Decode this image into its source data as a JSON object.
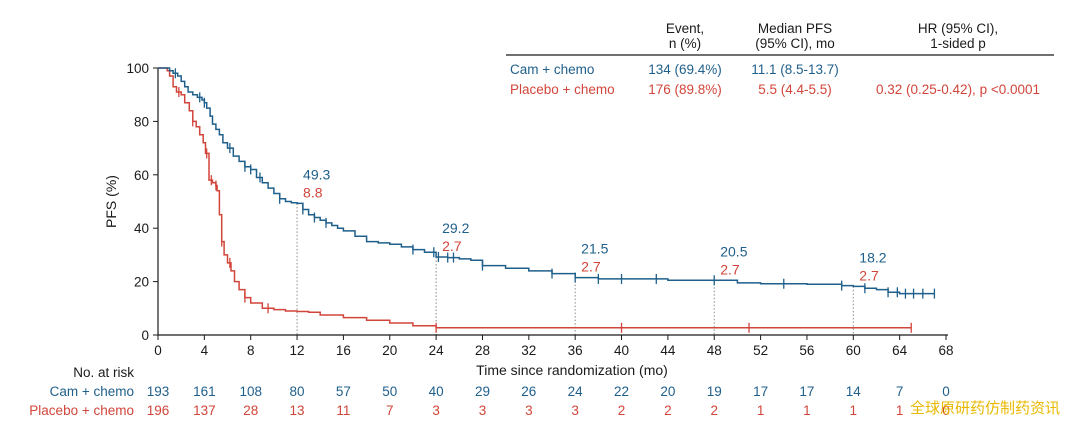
{
  "chart_data": {
    "type": "line",
    "ylabel": "PFS (%)",
    "xlabel": "Time since randomization (mo)",
    "xlim": [
      0,
      68
    ],
    "ylim": [
      0,
      100
    ],
    "x_ticks": [
      "0",
      "4",
      "8",
      "12",
      "16",
      "20",
      "24",
      "28",
      "32",
      "36",
      "40",
      "44",
      "48",
      "52",
      "56",
      "60",
      "64",
      "68"
    ],
    "y_ticks": [
      "0",
      "20",
      "40",
      "60",
      "80",
      "100"
    ],
    "colors": {
      "cam": "#1f5f8b",
      "placebo": "#d2453a"
    },
    "table": {
      "headers": [
        {
          "l1": "",
          "l2": ""
        },
        {
          "l1": "Event,",
          "l2": "n (%)"
        },
        {
          "l1": "Median PFS",
          "l2": "(95% CI), mo"
        },
        {
          "l1": "HR (95% CI),",
          "l2": "1-sided p"
        }
      ],
      "rows": [
        {
          "name": "Cam + chemo",
          "event": "134 (69.4%)",
          "median": "11.1 (8.5-13.7)",
          "hr": ""
        },
        {
          "name": "Placebo + chemo",
          "event": "176 (89.8%)",
          "median": "5.5 (4.4-5.5)",
          "hr": "0.32 (0.25-0.42), p <0.0001"
        }
      ]
    },
    "landmarks": [
      {
        "x": 12,
        "cam": "49.3",
        "placebo": "8.8"
      },
      {
        "x": 24,
        "cam": "29.2",
        "placebo": "2.7"
      },
      {
        "x": 36,
        "cam": "21.5",
        "placebo": "2.7"
      },
      {
        "x": 48,
        "cam": "20.5",
        "placebo": "2.7"
      },
      {
        "x": 60,
        "cam": "18.2",
        "placebo": "2.7"
      }
    ],
    "series": [
      {
        "name": "Cam + chemo",
        "color": "#1f5f8b",
        "x": [
          0,
          1,
          1.3,
          1.7,
          2,
          2.3,
          2.6,
          3,
          3.4,
          3.8,
          4,
          4.2,
          4.5,
          4.7,
          5,
          5.3,
          5.6,
          6,
          6.5,
          7,
          7.5,
          8,
          8.5,
          9,
          9.5,
          10,
          10.5,
          11,
          11.5,
          12,
          12.5,
          13,
          13.5,
          14,
          14.5,
          15,
          15.5,
          16,
          17,
          18,
          19,
          20,
          21,
          22,
          23,
          24,
          25,
          26,
          27,
          28,
          30,
          32,
          34,
          36,
          38,
          40,
          44,
          48,
          50,
          52,
          56,
          58,
          59,
          60,
          61,
          62,
          63,
          64,
          65,
          66,
          67
        ],
        "y": [
          100,
          99,
          98,
          97,
          95,
          93,
          91,
          90,
          89,
          88,
          87,
          85,
          82,
          79,
          77,
          75,
          72,
          70,
          67,
          65,
          63,
          62,
          59,
          57,
          55,
          53,
          51,
          50,
          49.5,
          49.3,
          47,
          45,
          44,
          43,
          42,
          41,
          40,
          39,
          37,
          35,
          34.5,
          34,
          33,
          32,
          31,
          29.2,
          29,
          28.5,
          28,
          26,
          25,
          24,
          23,
          21.5,
          21,
          21,
          20.5,
          20.5,
          19.5,
          19.2,
          19,
          19,
          18.5,
          18.2,
          17.5,
          17,
          16,
          15.5,
          15.5,
          15.5,
          15.5
        ]
      },
      {
        "name": "Placebo + chemo",
        "color": "#d2453a",
        "x": [
          0,
          0.8,
          1,
          1.3,
          1.6,
          2,
          2.3,
          2.7,
          3,
          3.3,
          3.6,
          3.9,
          4.1,
          4.4,
          4.7,
          5,
          5.1,
          5.3,
          5.5,
          5.7,
          6,
          6.3,
          6.6,
          7,
          7.5,
          8,
          9,
          10,
          11,
          12,
          13,
          14,
          16,
          18,
          20,
          22,
          24,
          28,
          32,
          36,
          40,
          44,
          48,
          52,
          56,
          60,
          64,
          65
        ],
        "y": [
          100,
          99,
          97,
          93,
          91,
          90,
          87,
          84,
          80,
          78,
          75,
          72,
          68,
          58,
          57,
          56,
          54,
          45,
          35,
          30,
          27,
          24,
          20,
          17,
          14,
          12,
          10,
          9.5,
          9,
          8.8,
          8.5,
          7.5,
          6.5,
          5.5,
          4.5,
          3.5,
          2.7,
          2.7,
          2.7,
          2.7,
          2.7,
          2.7,
          2.7,
          2.7,
          2.7,
          2.7,
          2.7,
          2.7
        ]
      }
    ],
    "censor_marks": {
      "cam": [
        1.5,
        3.6,
        4,
        6.2,
        7.5,
        8,
        8.8,
        10.5,
        12.5,
        13.5,
        14.5,
        22,
        23.8,
        24.2,
        25,
        25.5,
        28,
        34,
        36,
        38,
        40,
        43,
        48,
        54,
        59,
        61,
        63,
        63.8,
        64.5,
        65.2,
        66,
        67
      ],
      "placebo": [
        1.8,
        3,
        4.2,
        4.6,
        5,
        5.5,
        6.2,
        7.5,
        9.5,
        24,
        40,
        51,
        65
      ]
    },
    "risk_table": {
      "title": "No. at risk",
      "rows": [
        {
          "name": "Cam + chemo",
          "values": [
            "193",
            "161",
            "108",
            "80",
            "57",
            "50",
            "40",
            "29",
            "26",
            "24",
            "22",
            "20",
            "19",
            "17",
            "17",
            "14",
            "7",
            "0"
          ]
        },
        {
          "name": "Placebo + chemo",
          "values": [
            "196",
            "137",
            "28",
            "13",
            "11",
            "7",
            "3",
            "3",
            "3",
            "3",
            "2",
            "2",
            "2",
            "1",
            "1",
            "1",
            "1",
            "0"
          ]
        }
      ]
    },
    "watermark": "全球原研药仿制药资讯"
  }
}
